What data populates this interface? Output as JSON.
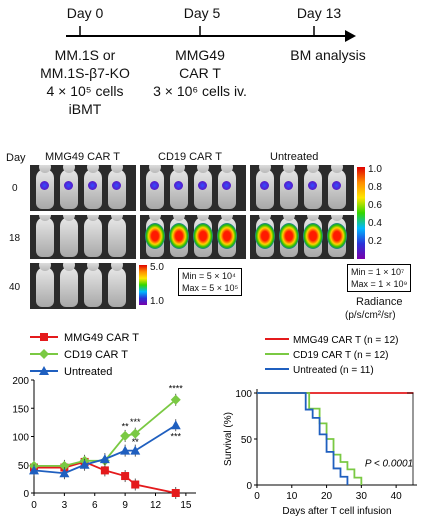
{
  "timeline": {
    "days": [
      "Day 0",
      "Day 5",
      "Day 13"
    ],
    "day0_lines": [
      "MM.1S or",
      "MM.1S-β7-KO",
      "4 × 10⁵ cells",
      "iBMT"
    ],
    "day5_lines": [
      "MMG49",
      "CAR T",
      "3 × 10⁶ cells iv."
    ],
    "day13_label": "BM analysis"
  },
  "imaging": {
    "day_header": "Day",
    "groups": [
      "MMG49 CAR T",
      "CD19 CAR T",
      "Untreated"
    ],
    "rows": [
      "0",
      "18",
      "40"
    ],
    "scale1": {
      "top": "5.0",
      "bottom": "1.0",
      "min": "Min = 5 × 10⁴",
      "max": "Max = 5 × 10⁵"
    },
    "scale2": {
      "ticks": [
        "1.0",
        "0.8",
        "0.6",
        "0.4",
        "0.2"
      ],
      "min": "Min = 1 × 10⁷",
      "max": "Max = 1 × 10⁹"
    },
    "radiance_label": "Radiance",
    "radiance_unit": "(p/s/cm²/sr)"
  },
  "line_chart": {
    "chart_data": {
      "type": "line",
      "x": [
        0,
        3,
        5,
        7,
        9,
        10,
        14
      ],
      "xticks": [
        "0",
        "3",
        "6",
        "9",
        "12",
        "15"
      ],
      "yticks": [
        "0",
        "50",
        "100",
        "150",
        "200"
      ],
      "xlim": [
        0,
        16
      ],
      "ylim": [
        0,
        200
      ],
      "series": [
        {
          "name": "MMG49 CAR T",
          "color": "#e41a1c",
          "marker": "square",
          "values": [
            45,
            45,
            55,
            40,
            30,
            15,
            0
          ]
        },
        {
          "name": "CD19 CAR T",
          "color": "#7ac943",
          "marker": "diamond",
          "values": [
            48,
            48,
            57,
            57,
            101,
            105,
            165
          ]
        },
        {
          "name": "Untreated",
          "color": "#1f5fbf",
          "marker": "triangle",
          "values": [
            40,
            35,
            50,
            60,
            75,
            75,
            120
          ]
        }
      ],
      "annotations": [
        "**",
        "***",
        "****",
        "**",
        "***"
      ]
    }
  },
  "survival_chart": {
    "chart_data": {
      "type": "line",
      "xlabel": "Days after T cell infusion",
      "ylabel": "Survival (%)",
      "xticks": [
        "0",
        "10",
        "20",
        "30",
        "40"
      ],
      "yticks": [
        "0",
        "50",
        "100"
      ],
      "xlim": [
        0,
        46
      ],
      "ylim": [
        0,
        100
      ],
      "series": [
        {
          "name": "MMG49 CAR T (n = 12)",
          "color": "#e41a1c",
          "x": [
            0,
            45
          ],
          "y": [
            100,
            100
          ]
        },
        {
          "name": "CD19 CAR T (n = 12)",
          "color": "#7ac943",
          "x": [
            0,
            15,
            18,
            20,
            22,
            24,
            26,
            28,
            30
          ],
          "y": [
            100,
            83,
            67,
            50,
            33,
            25,
            17,
            8,
            0
          ]
        },
        {
          "name": "Untreated (n = 11)",
          "color": "#1f5fbf",
          "x": [
            0,
            14,
            16,
            18,
            20,
            22,
            24,
            26
          ],
          "y": [
            100,
            82,
            73,
            55,
            36,
            18,
            9,
            0
          ]
        }
      ],
      "pvalue": "P < 0.0001"
    }
  }
}
